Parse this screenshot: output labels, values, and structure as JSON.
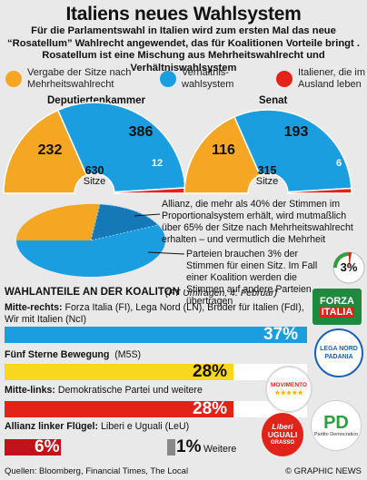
{
  "title": "Italiens neues Wahlsystem",
  "intro": "Für die Parlamentswahl in Italien wird zum ersten Mal das neue “Rosatellum” Wahlrecht angewendet, das für Koalitionen Vorteile bringt . Rosatellum ist eine Mischung aus Mehrheitswahlrecht und Verhältniswahlsystem",
  "legend": [
    {
      "label": "Vergabe der Sitze nach Mehrheitswahlrecht",
      "color": "#f5a623"
    },
    {
      "label": "Verhältnis-wahlsystem",
      "color": "#1a9ee0"
    },
    {
      "label": "Italiener, die im Ausland leben",
      "color": "#e2231a"
    }
  ],
  "colors": {
    "majority": "#f5a623",
    "proportional": "#1a9ee0",
    "abroad": "#e2231a",
    "center_dark": "#1d1d1d",
    "bar_blue": "#1a9ee0",
    "bar_yellow": "#f9d71c",
    "bar_red": "#e2231a",
    "bar_darkred": "#c0141c",
    "bar_grey": "#888888"
  },
  "chambers": [
    {
      "title": "Deputiertenkammer",
      "total": "630",
      "total_label": "Sitze",
      "labels": [
        "232",
        "386",
        "12"
      ]
    },
    {
      "title": "Senat",
      "total": "315",
      "total_label": "Sitze",
      "labels": [
        "116",
        "193",
        "6"
      ]
    }
  ],
  "annotations": [
    "Allianz, die mehr als 40% der Stimmen im Proportionalsystem erhält, wird mutmaßlich über 65% der Sitze nach Mehrheitswahlrecht erhalten – und vermutlich die Mehrheit",
    "Parteien brauchen 3% der Stimmen für einen Sitz. Im Fall einer Koalition werden die Stimmen auf andere Parteien übertragen"
  ],
  "threshold_badge": "3%",
  "section": {
    "title": "WAHLANTEILE AN DER KOALITON",
    "source": "(FT Umfragen, 4. Februar)"
  },
  "chart_data": [
    {
      "type": "pie",
      "title": "Deputiertenkammer",
      "categories": [
        "Vergabe der Sitze nach Mehrheitswahlrecht",
        "Verhältniswahlsystem",
        "Italiener, die im Ausland leben"
      ],
      "values": [
        232,
        386,
        12
      ],
      "total": 630
    },
    {
      "type": "pie",
      "title": "Senat",
      "categories": [
        "Vergabe der Sitze nach Mehrheitswahlrecht",
        "Verhältniswahlsystem",
        "Italiener, die im Ausland leben"
      ],
      "values": [
        116,
        193,
        6
      ],
      "total": 315
    },
    {
      "type": "bar",
      "title": "WAHLANTEILE AN DER KOALITON",
      "categories": [
        "Mitte-rechts",
        "Fünf Sterne Bewegung",
        "Mitte-links",
        "Allianz linker Flügel",
        "Weitere"
      ],
      "values": [
        37,
        28,
        28,
        6,
        1
      ],
      "value_labels": [
        "37%",
        "28%",
        "28%",
        "6%",
        "1%"
      ],
      "ylim": [
        0,
        37
      ]
    }
  ],
  "parties": [
    {
      "name": "Mitte-rechts:",
      "detail": "Forza Italia (FI), Lega Nord (LN), Brüder für Italien (FdI), Wir mit Italien (NcI)"
    },
    {
      "name": "Fünf Sterne Bewegung",
      "detail": "(M5S)"
    },
    {
      "name": "Mitte-links:",
      "detail": "Demokratische Partei und weitere"
    },
    {
      "name": "Allianz linker Flügel:",
      "detail": "Liberi e Uguali (LeU)"
    }
  ],
  "others_label": "Weitere",
  "logos": {
    "forza": [
      "FORZA",
      "ITALIA"
    ],
    "lega": [
      "LEGA NORD",
      "PADANIA"
    ],
    "movimento": [
      "MOVIMENTO",
      "★★★★★"
    ],
    "liberi": [
      "Liberi",
      "UGUALI",
      "GRASSO"
    ],
    "pd": [
      "PD",
      "Partito Democratico"
    ]
  },
  "footer": {
    "source": "Quellen: Bloomberg, Financial Times, The Local",
    "brand": "© GRAPHIC NEWS"
  }
}
